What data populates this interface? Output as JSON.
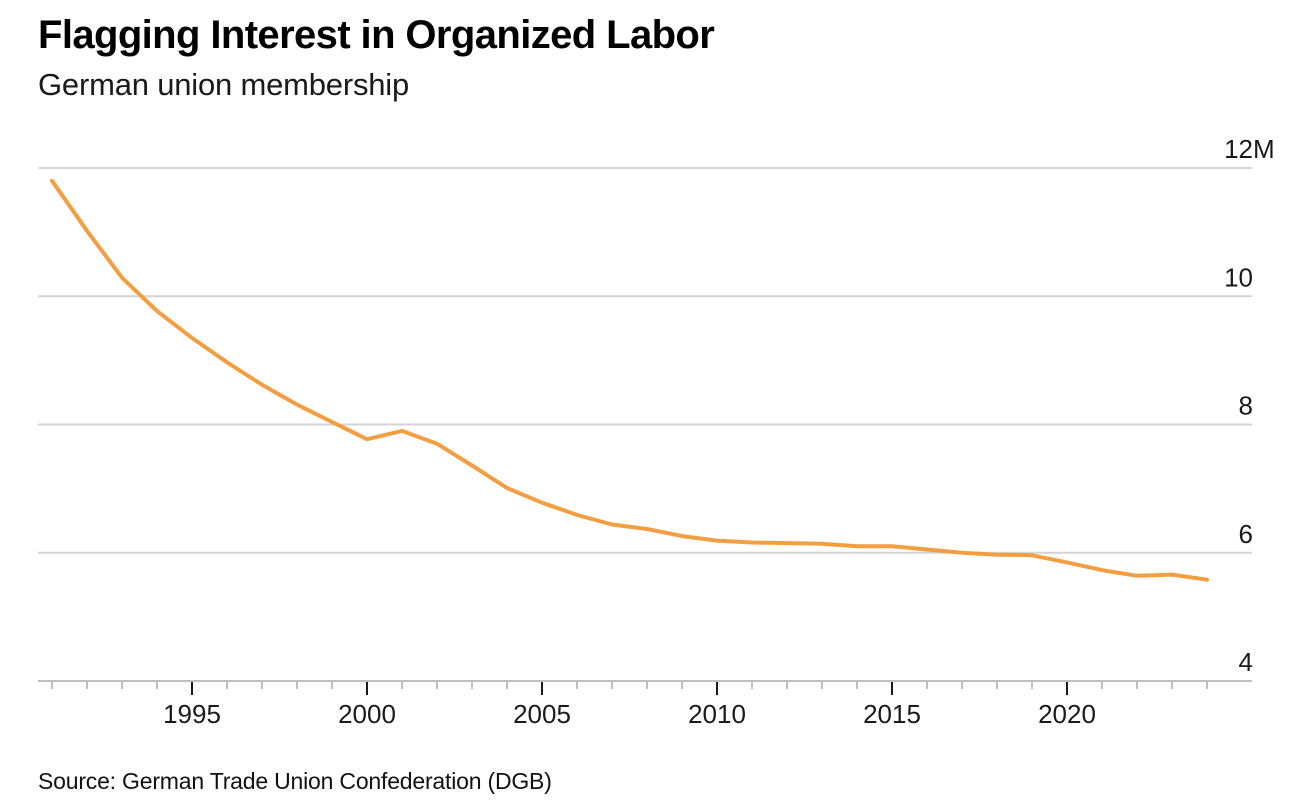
{
  "header": {
    "title": "Flagging Interest in Organized Labor",
    "subtitle": "German union membership"
  },
  "footer": {
    "source": "Source: German Trade Union Confederation (DGB)"
  },
  "chart_data": {
    "type": "line",
    "title": "Flagging Interest in Organized Labor",
    "subtitle": "German union membership",
    "unit": "millions of members",
    "grid": "horizontal",
    "legend": "none",
    "axis_label_side": "right",
    "xlim": [
      1990.6,
      2025.3
    ],
    "ylim": [
      4,
      12
    ],
    "x": [
      1991,
      1992,
      1993,
      1994,
      1995,
      1996,
      1997,
      1998,
      1999,
      2000,
      2001,
      2002,
      2003,
      2004,
      2005,
      2006,
      2007,
      2008,
      2009,
      2010,
      2011,
      2012,
      2013,
      2014,
      2015,
      2016,
      2017,
      2018,
      2019,
      2020,
      2021,
      2022,
      2023,
      2024
    ],
    "series": [
      {
        "name": "German union membership (DGB)",
        "color": "#F49E42",
        "values": [
          11.8,
          11.02,
          10.29,
          9.77,
          9.35,
          8.97,
          8.62,
          8.31,
          8.04,
          7.77,
          7.9,
          7.7,
          7.36,
          7.01,
          6.78,
          6.59,
          6.44,
          6.37,
          6.26,
          6.19,
          6.16,
          6.15,
          6.14,
          6.1,
          6.1,
          6.05,
          6.0,
          5.97,
          5.96,
          5.85,
          5.73,
          5.64,
          5.66,
          5.58
        ]
      }
    ],
    "y_ticks": [
      {
        "value": 12,
        "label": "12",
        "suffix": "M"
      },
      {
        "value": 10,
        "label": "10",
        "suffix": ""
      },
      {
        "value": 8,
        "label": "8",
        "suffix": ""
      },
      {
        "value": 6,
        "label": "6",
        "suffix": ""
      },
      {
        "value": 4,
        "label": "4",
        "suffix": ""
      }
    ],
    "x_major_ticks": [
      1995,
      2000,
      2005,
      2010,
      2015,
      2020
    ],
    "style": {
      "line_color": "#F49E42",
      "grid_color": "#D4D4D4",
      "axis_color": "#BFBFBF",
      "minor_tick_color": "#BFBFBF",
      "major_tick_color": "#1A1A1A",
      "text_color": "#1A1A1A",
      "background": "#FFFFFF"
    }
  }
}
